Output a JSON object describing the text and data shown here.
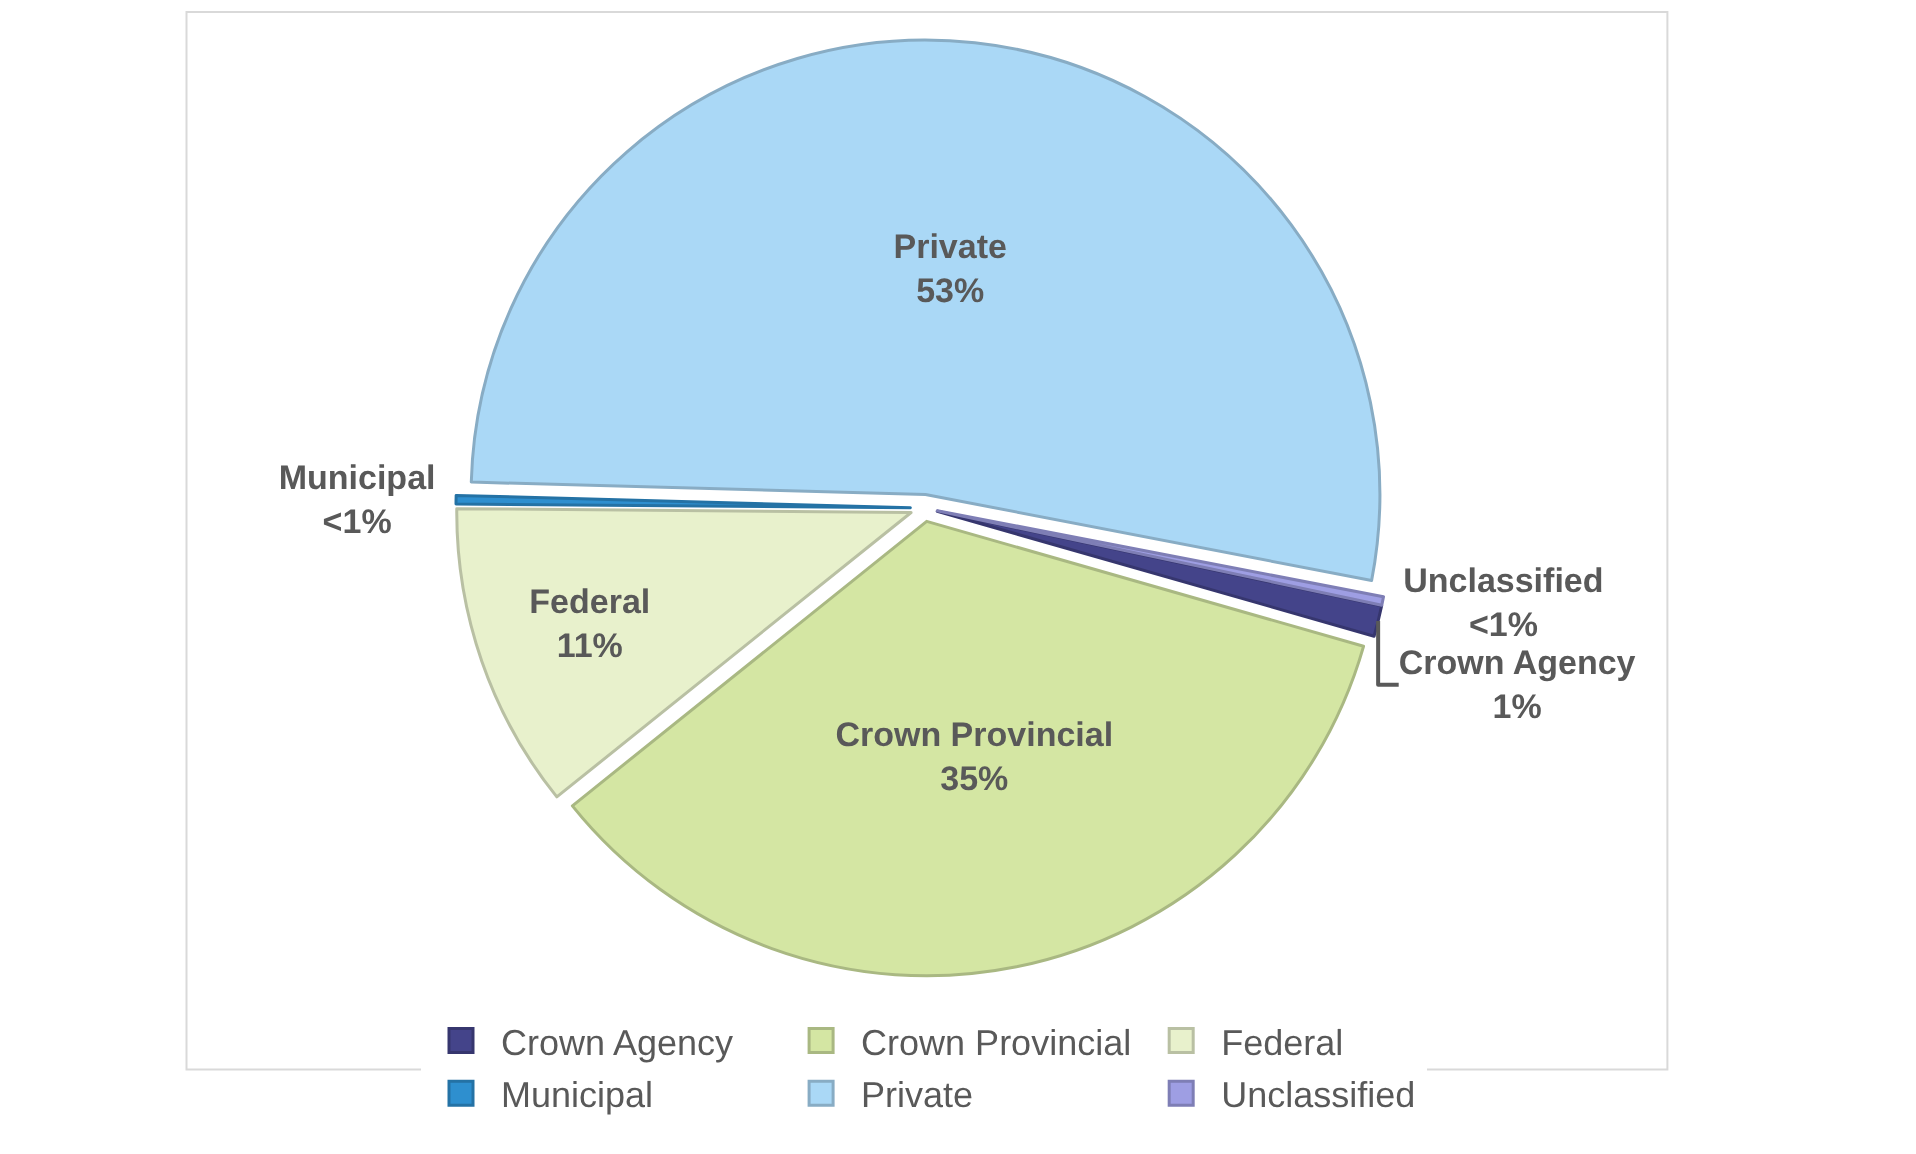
{
  "chart_data": {
    "type": "pie",
    "categories": [
      "Crown Agency",
      "Crown Provincial",
      "Federal",
      "Municipal",
      "Private",
      "Unclassified"
    ],
    "values": [
      1.1,
      34.8,
      10.9,
      0.3,
      52.6,
      0.3
    ],
    "value_labels": [
      "1%",
      "35%",
      "11%",
      "<1%",
      "53%",
      "<1%"
    ],
    "colors": [
      "#44448a",
      "#d4e6a3",
      "#e8f1cc",
      "#2e8fcf",
      "#aad8f6",
      "#9e9ee3"
    ],
    "legend": "bottom"
  }
}
